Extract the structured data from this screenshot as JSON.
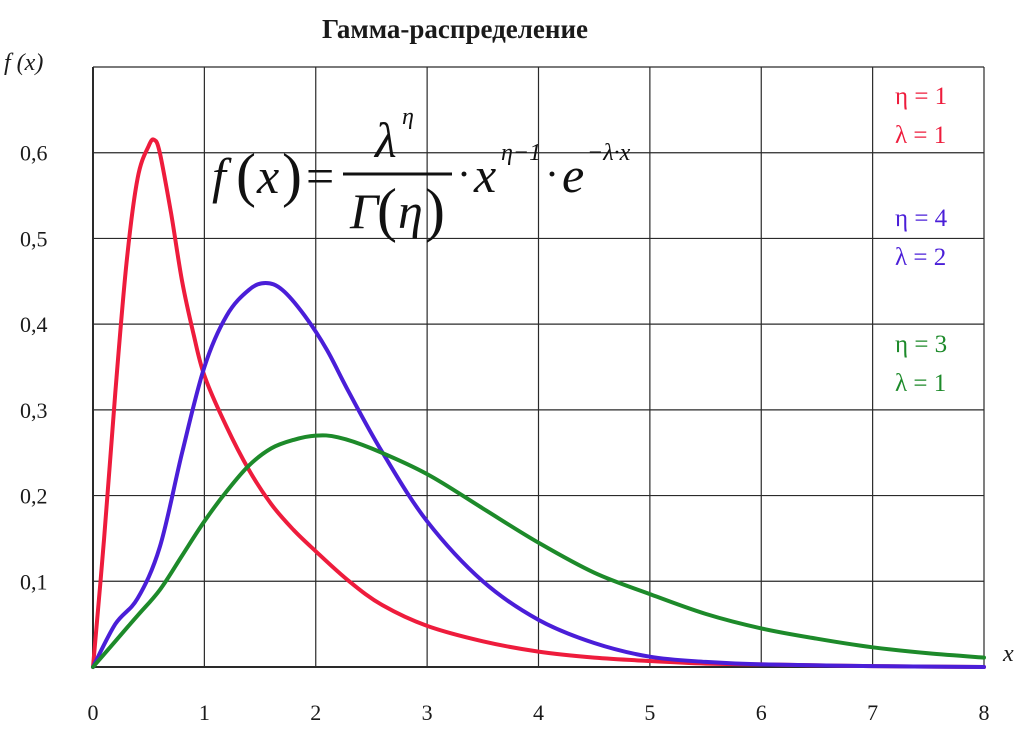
{
  "chart_data": {
    "type": "line",
    "title": "Гамма-распределение",
    "ylabel": "f (x)",
    "xlabel": "x",
    "xlim": [
      0,
      8
    ],
    "ylim": [
      0,
      0.7
    ],
    "grid": true,
    "x_ticks": [
      "0",
      "1",
      "2",
      "3",
      "4",
      "5",
      "6",
      "7",
      "8"
    ],
    "y_ticks": [
      "0,1",
      "0,2",
      "0,3",
      "0,4",
      "0,5",
      "0,6"
    ],
    "formula": {
      "lhs": "f",
      "arg": "x",
      "equals": "=",
      "numerator": "λ",
      "numerator_exp": "η",
      "denominator": "Γ",
      "denominator_arg": "η",
      "dot": "·",
      "x_base": "x",
      "x_exp": "η−1",
      "e_base": "e",
      "e_exp": "−λ·x"
    },
    "series": [
      {
        "legend": [
          "η = 1",
          "λ = 1"
        ],
        "color": "#ee1c3c",
        "x": [
          0,
          0.1,
          0.2,
          0.3,
          0.4,
          0.5,
          0.55,
          0.6,
          0.7,
          0.8,
          0.9,
          1.0,
          1.2,
          1.4,
          1.6,
          1.8,
          2.0,
          2.3,
          2.6,
          3.0,
          3.5,
          4.0,
          4.5,
          5.0,
          5.5,
          6.0,
          7.0,
          8.0
        ],
        "y": [
          0.0,
          0.15,
          0.32,
          0.47,
          0.57,
          0.608,
          0.615,
          0.6,
          0.53,
          0.45,
          0.39,
          0.34,
          0.28,
          0.23,
          0.19,
          0.16,
          0.135,
          0.1,
          0.072,
          0.048,
          0.03,
          0.018,
          0.011,
          0.007,
          0.004,
          0.003,
          0.001,
          0.0
        ]
      },
      {
        "legend": [
          "η = 4",
          "λ = 2"
        ],
        "color": "#4a1ed8",
        "x": [
          0,
          0.2,
          0.4,
          0.6,
          0.8,
          1.0,
          1.2,
          1.4,
          1.55,
          1.7,
          1.9,
          2.1,
          2.3,
          2.6,
          3.0,
          3.5,
          4.0,
          4.5,
          5.0,
          5.5,
          6.0,
          7.0,
          8.0
        ],
        "y": [
          0.0,
          0.05,
          0.08,
          0.14,
          0.25,
          0.35,
          0.41,
          0.44,
          0.448,
          0.44,
          0.41,
          0.37,
          0.32,
          0.25,
          0.17,
          0.1,
          0.055,
          0.028,
          0.012,
          0.006,
          0.003,
          0.001,
          0.0
        ]
      },
      {
        "legend": [
          "η = 3",
          "λ = 1"
        ],
        "color": "#1d8a2a",
        "x": [
          0,
          0.2,
          0.4,
          0.6,
          0.8,
          1.0,
          1.2,
          1.4,
          1.6,
          1.8,
          2.0,
          2.2,
          2.5,
          3.0,
          3.5,
          4.0,
          4.5,
          5.0,
          5.5,
          6.0,
          6.5,
          7.0,
          7.5,
          8.0
        ],
        "y": [
          0.0,
          0.03,
          0.06,
          0.09,
          0.13,
          0.17,
          0.205,
          0.235,
          0.255,
          0.265,
          0.27,
          0.268,
          0.255,
          0.225,
          0.185,
          0.145,
          0.11,
          0.085,
          0.062,
          0.045,
          0.033,
          0.023,
          0.016,
          0.011
        ]
      }
    ]
  }
}
